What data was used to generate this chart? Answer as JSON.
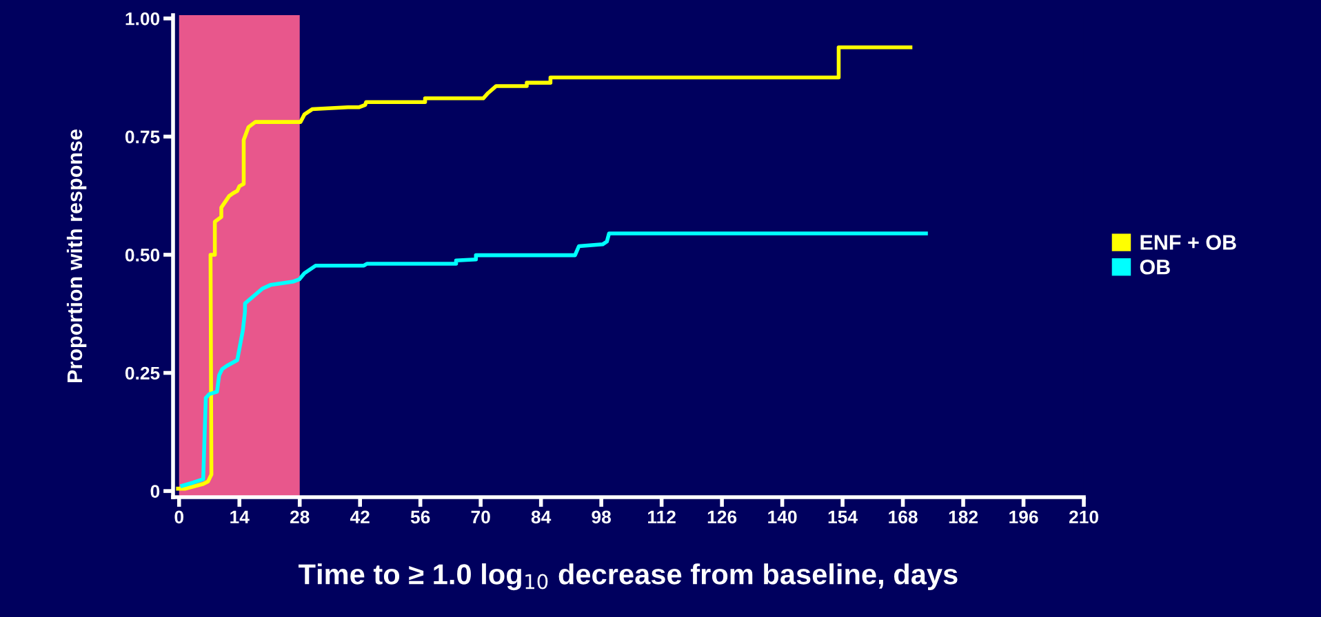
{
  "chart_data": {
    "type": "line",
    "xlabel": "Time to ≥ 1.0 log$_{10}$ decrease from baseline, days",
    "ylabel": "Proportion with response",
    "xlim": [
      -1.4,
      210
    ],
    "xticks": [
      0,
      14,
      28,
      42,
      56,
      70,
      84,
      98,
      112,
      126,
      140,
      154,
      168,
      182,
      196,
      210
    ],
    "ylim": [
      -0.013,
      1.007
    ],
    "yticks": [
      {
        "value": 0,
        "label": "0"
      },
      {
        "value": 0.25,
        "label": "0.25"
      },
      {
        "value": 0.5,
        "label": "0.50"
      },
      {
        "value": 0.75,
        "label": "0.75"
      },
      {
        "value": 1.0,
        "label": "1.00"
      }
    ],
    "bands": [
      {
        "axis": "x",
        "from": 0,
        "to": 28,
        "color": "#e8578c"
      }
    ],
    "series": [
      {
        "name": "ENF + OB",
        "color": "#ffff00",
        "x": [
          -0.7,
          1.5,
          5.6,
          6.7,
          7.5,
          7.3,
          8.3,
          8.3,
          9.8,
          9.8,
          11.6,
          12.5,
          13.5,
          14,
          15,
          15,
          16.1,
          17.7,
          28.2,
          29.1,
          30.9,
          39.2,
          41.7,
          43.2,
          43.4,
          57.1,
          57.1,
          70.6,
          71.7,
          73.6,
          80.7,
          80.7,
          86.2,
          86.2,
          153.1,
          153.1,
          170.2
        ],
        "values": [
          0.005,
          0.005,
          0.015,
          0.02,
          0.035,
          0.5,
          0.5,
          0.57,
          0.58,
          0.6,
          0.624,
          0.63,
          0.635,
          0.645,
          0.65,
          0.743,
          0.77,
          0.781,
          0.781,
          0.797,
          0.808,
          0.812,
          0.812,
          0.817,
          0.823,
          0.823,
          0.831,
          0.831,
          0.842,
          0.857,
          0.857,
          0.864,
          0.864,
          0.875,
          0.875,
          0.939,
          0.939
        ]
      },
      {
        "name": "OB",
        "color": "#00ffff",
        "x": [
          0.3,
          3.3,
          5.6,
          6.2,
          7.0,
          8.8,
          9.3,
          10,
          11.1,
          13.5,
          14.8,
          15.3,
          15.3,
          19.3,
          21.2,
          26.4,
          27.9,
          29.1,
          31.7,
          42.9,
          43.6,
          64.3,
          64.3,
          68.9,
          68.9,
          91.9,
          92.8,
          98.3,
          99.3,
          99.8,
          173.8
        ],
        "values": [
          0.01,
          0.018,
          0.025,
          0.197,
          0.205,
          0.21,
          0.245,
          0.258,
          0.265,
          0.277,
          0.34,
          0.38,
          0.397,
          0.428,
          0.436,
          0.443,
          0.448,
          0.461,
          0.477,
          0.477,
          0.481,
          0.481,
          0.488,
          0.49,
          0.499,
          0.499,
          0.518,
          0.522,
          0.528,
          0.545,
          0.545
        ]
      }
    ],
    "legend": "right",
    "marker": "none",
    "line_style": "solid",
    "grid": false
  }
}
